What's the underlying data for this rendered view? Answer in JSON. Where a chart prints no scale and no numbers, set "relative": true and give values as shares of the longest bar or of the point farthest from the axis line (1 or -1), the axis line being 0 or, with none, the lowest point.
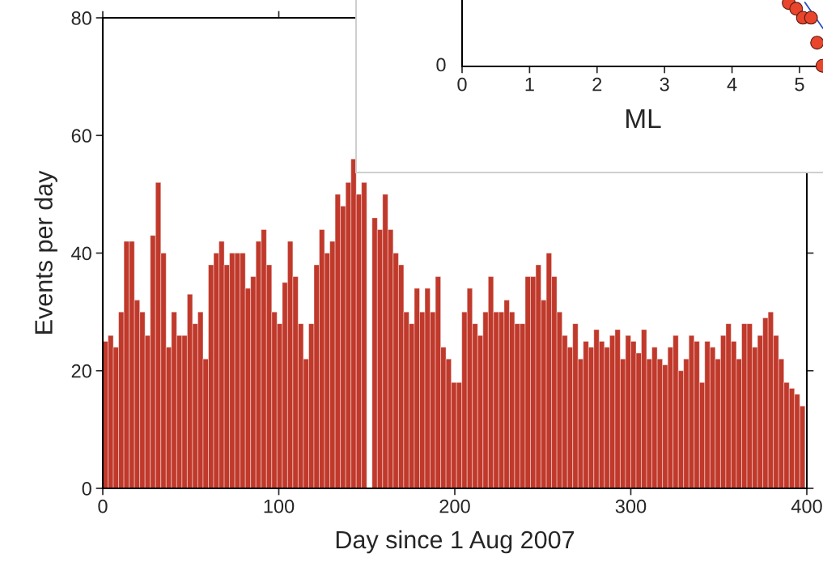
{
  "chart_data": [
    {
      "type": "histogram",
      "xlabel": "Day since 1 Aug 2007",
      "ylabel": "Events per day",
      "color": "#c0392b",
      "bins": [
        0,
        3,
        6,
        9,
        12,
        15,
        18,
        21,
        24,
        27,
        30,
        33,
        36,
        39,
        42,
        45,
        48,
        51,
        54,
        57,
        60,
        63,
        66,
        69,
        72,
        75,
        78,
        81,
        84,
        87,
        90,
        93,
        96,
        99,
        102,
        105,
        108,
        111,
        114,
        117,
        120,
        123,
        126,
        129,
        132,
        135,
        138,
        141,
        144,
        147,
        150,
        153,
        156,
        159,
        162,
        165,
        168,
        171,
        174,
        177,
        180,
        183,
        186,
        189,
        192,
        195,
        198,
        201,
        204,
        207,
        210,
        213,
        216,
        219,
        222,
        225,
        228,
        231,
        234,
        237,
        240,
        243,
        246,
        249,
        252,
        255,
        258,
        261,
        264,
        267,
        270,
        273,
        276,
        279,
        282,
        285,
        288,
        291,
        294,
        297,
        300,
        303,
        306,
        309,
        312,
        315,
        318,
        321,
        324,
        327,
        330,
        333,
        336,
        339,
        342,
        345,
        348,
        351,
        354,
        357,
        360,
        363,
        366,
        369,
        372,
        375,
        378,
        381,
        384,
        387,
        390,
        393,
        396,
        399
      ],
      "values": [
        25,
        26,
        24,
        30,
        42,
        42,
        32,
        30,
        26,
        43,
        52,
        40,
        24,
        30,
        26,
        26,
        33,
        28,
        30,
        22,
        38,
        40,
        42,
        38,
        40,
        40,
        40,
        34,
        36,
        42,
        44,
        38,
        30,
        28,
        35,
        42,
        36,
        28,
        22,
        28,
        38,
        44,
        40,
        42,
        50,
        48,
        52,
        56,
        50,
        52,
        null,
        46,
        44,
        50,
        44,
        40,
        38,
        30,
        28,
        34,
        30,
        34,
        30,
        36,
        24,
        22,
        18,
        18,
        30,
        34,
        28,
        26,
        30,
        36,
        30,
        30,
        32,
        30,
        28,
        28,
        36,
        36,
        38,
        32,
        40,
        36,
        30,
        26,
        24,
        28,
        22,
        25,
        24,
        27,
        25,
        24,
        26,
        27,
        22,
        26,
        25,
        23,
        27,
        22,
        24,
        22,
        21,
        24,
        26,
        20,
        22,
        26,
        25,
        18,
        25,
        24,
        22,
        26,
        28,
        25,
        22,
        28,
        28,
        24,
        26,
        29,
        30,
        26,
        22,
        18,
        17,
        16,
        14
      ],
      "xlim": [
        0,
        400
      ],
      "xticks": [
        0,
        100,
        200,
        300,
        400
      ],
      "ylim": [
        0,
        80
      ],
      "yticks": [
        0,
        20,
        40,
        60,
        80
      ],
      "grid": false
    },
    {
      "type": "scatter",
      "xlabel": "ML",
      "xlim": [
        0,
        5.36
      ],
      "xticks": [
        0,
        1,
        2,
        3,
        4,
        5
      ],
      "annotations": [
        "0"
      ],
      "relative": true,
      "series": [
        {
          "color": "#e8452c",
          "marker": "circle",
          "x": [
            4.84,
            4.95,
            5.05,
            5.17,
            5.26,
            5.34
          ],
          "values": [
            0.99,
            0.9,
            0.76,
            0.76,
            0.37,
            0.01
          ]
        },
        {
          "type": "line",
          "marker": "none",
          "color": "#2a4bc8",
          "x": [
            5.08,
            5.35
          ],
          "values": [
            1.0,
            0.59
          ]
        }
      ]
    }
  ]
}
